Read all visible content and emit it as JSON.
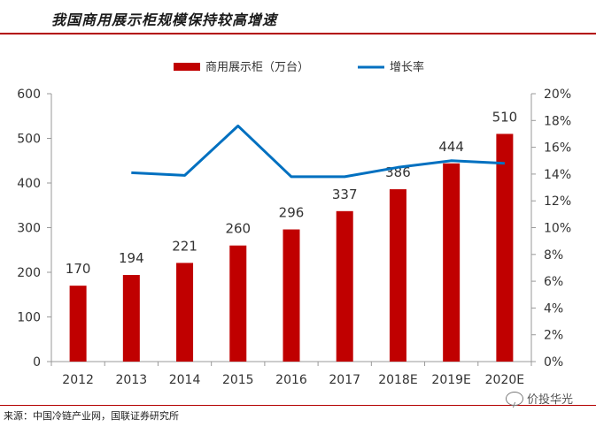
{
  "header": {
    "title": "我国商用展示柜规模保持较高增速"
  },
  "footer": {
    "source": "来源：中国冷链产业网，国联证券研究所"
  },
  "watermark": {
    "text": "价投华光",
    "icon": "wechat-icon"
  },
  "chart_data": {
    "type": "bar-line",
    "categories": [
      "2012",
      "2013",
      "2014",
      "2015",
      "2016",
      "2017",
      "2018E",
      "2019E",
      "2020E"
    ],
    "series": [
      {
        "name": "商用展示柜（万台）",
        "type": "bar",
        "axis": "left",
        "color": "#c00000",
        "values": [
          170,
          194,
          221,
          260,
          296,
          337,
          386,
          444,
          510
        ]
      },
      {
        "name": "增长率",
        "type": "line",
        "axis": "right",
        "color": "#0070c0",
        "values": [
          null,
          14.1,
          13.9,
          17.6,
          13.8,
          13.8,
          14.5,
          15.0,
          14.8
        ]
      }
    ],
    "data_labels": [
      "170",
      "194",
      "221",
      "260",
      "296",
      "337",
      "386",
      "444",
      "510"
    ],
    "left_axis": {
      "min": 0,
      "max": 600,
      "ticks": [
        "0",
        "100",
        "200",
        "300",
        "400",
        "500",
        "600"
      ]
    },
    "right_axis": {
      "min": 0,
      "max": 20,
      "ticks": [
        "0%",
        "2%",
        "4%",
        "6%",
        "8%",
        "10%",
        "12%",
        "14%",
        "16%",
        "18%",
        "20%"
      ]
    },
    "legend": {
      "placement": "top"
    },
    "grid": false
  }
}
